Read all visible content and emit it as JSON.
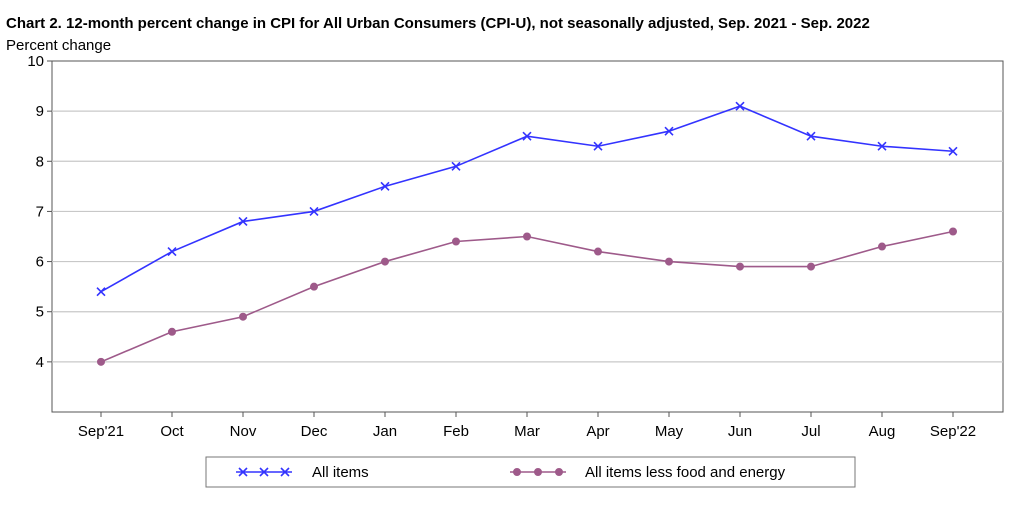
{
  "chart_data": {
    "type": "line",
    "title": "Chart 2. 12-month percent change in CPI for All Urban Consumers (CPI-U), not seasonally adjusted, Sep. 2021 - Sep. 2022",
    "ylabel": "Percent change",
    "xlabel": "",
    "categories": [
      "Sep'21",
      "Oct",
      "Nov",
      "Dec",
      "Jan",
      "Feb",
      "Mar",
      "Apr",
      "May",
      "Jun",
      "Jul",
      "Aug",
      "Sep'22"
    ],
    "ylim": [
      3,
      10
    ],
    "yticks": [
      4,
      5,
      6,
      7,
      8,
      9,
      10
    ],
    "grid": true,
    "legend": "bottom",
    "series": [
      {
        "name": "All items",
        "color": "#3333ff",
        "marker": "x",
        "values": [
          5.4,
          6.2,
          6.8,
          7.0,
          7.5,
          7.9,
          8.5,
          8.3,
          8.6,
          9.1,
          8.5,
          8.3,
          8.2
        ]
      },
      {
        "name": "All items less food and energy",
        "color": "#9e5a8a",
        "marker": "circle",
        "values": [
          4.0,
          4.6,
          4.9,
          5.5,
          6.0,
          6.4,
          6.5,
          6.2,
          6.0,
          5.9,
          5.9,
          6.3,
          6.6
        ]
      }
    ]
  }
}
